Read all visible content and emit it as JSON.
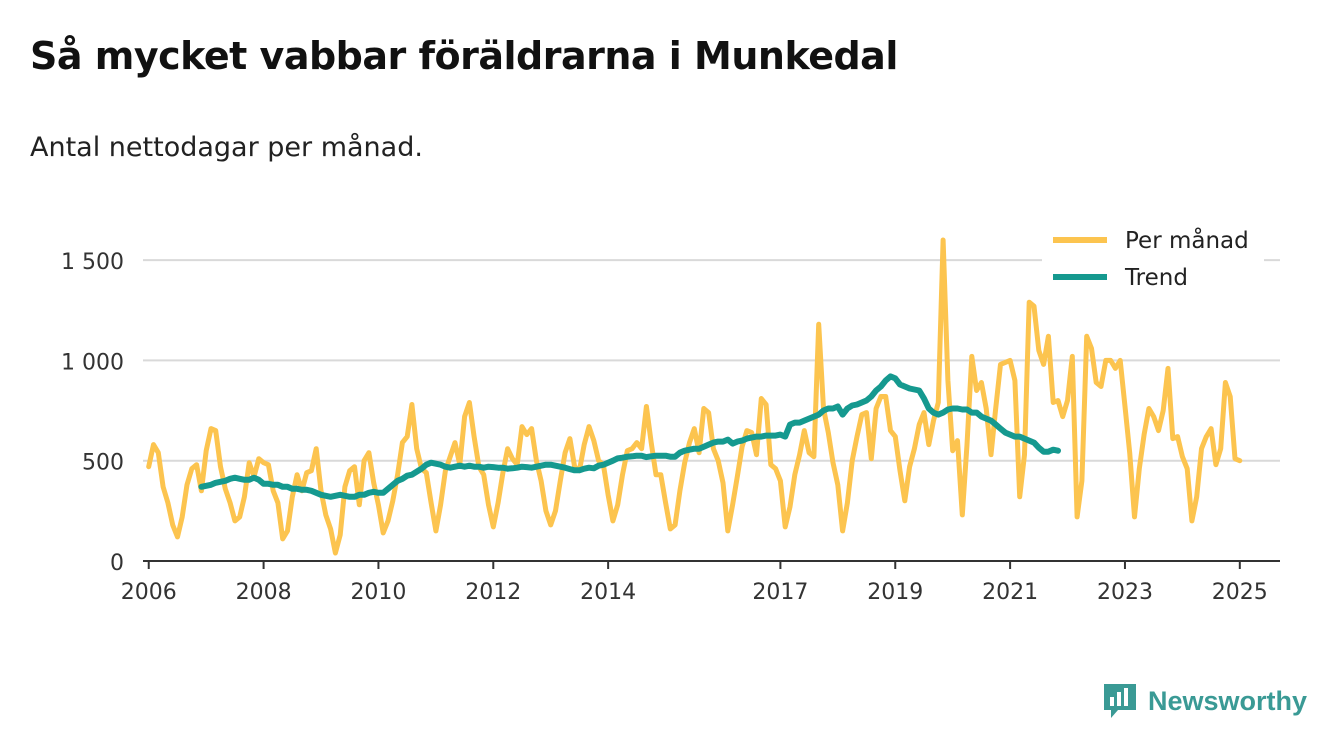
{
  "header": {
    "title": "Så mycket vabbar föräldrarna i Munkedal",
    "subtitle": "Antal nettodagar per månad."
  },
  "brand": {
    "name": "Newsworthy",
    "color": "#3a9a95"
  },
  "chart_data": {
    "type": "line",
    "title": "Så mycket vabbar föräldrarna i Munkedal",
    "subtitle": "Antal nettodagar per månad.",
    "xlabel": "",
    "ylabel": "",
    "xlim": [
      2005.9,
      2025.7
    ],
    "ylim": [
      0,
      1650
    ],
    "yticks": [
      0,
      500,
      1000,
      1500
    ],
    "ytick_labels": [
      "0",
      "500",
      "1 000",
      "1 500"
    ],
    "xticks": [
      2006,
      2008,
      2010,
      2012,
      2014,
      2017,
      2019,
      2021,
      2023,
      2025
    ],
    "xtick_labels": [
      "2006",
      "2008",
      "2010",
      "2012",
      "2014",
      "2017",
      "2019",
      "2021",
      "2023",
      "2025"
    ],
    "grid": true,
    "legend_position": "top-right",
    "series": [
      {
        "name": "Per månad",
        "color": "#fcc44f",
        "start": 2006.0,
        "step": 0.0833333,
        "values": [
          470,
          580,
          540,
          370,
          290,
          180,
          120,
          220,
          380,
          460,
          480,
          350,
          550,
          660,
          650,
          470,
          360,
          290,
          200,
          220,
          320,
          490,
          420,
          510,
          490,
          480,
          350,
          290,
          110,
          150,
          320,
          430,
          350,
          440,
          450,
          560,
          350,
          230,
          160,
          40,
          130,
          370,
          450,
          470,
          280,
          500,
          540,
          390,
          280,
          140,
          200,
          300,
          430,
          590,
          620,
          780,
          560,
          460,
          440,
          290,
          150,
          280,
          450,
          520,
          590,
          480,
          720,
          790,
          620,
          470,
          430,
          280,
          170,
          290,
          440,
          560,
          510,
          480,
          670,
          630,
          660,
          500,
          400,
          250,
          180,
          250,
          400,
          540,
          610,
          470,
          450,
          580,
          670,
          600,
          500,
          480,
          330,
          200,
          280,
          430,
          550,
          560,
          590,
          560,
          770,
          590,
          430,
          430,
          290,
          160,
          180,
          350,
          490,
          590,
          660,
          540,
          760,
          740,
          560,
          500,
          390,
          150,
          280,
          420,
          570,
          650,
          640,
          530,
          810,
          780,
          480,
          460,
          400,
          170,
          270,
          430,
          530,
          650,
          540,
          520,
          1180,
          760,
          640,
          490,
          380,
          150,
          290,
          500,
          620,
          730,
          740,
          510,
          760,
          820,
          820,
          650,
          620,
          450,
          300,
          470,
          560,
          680,
          740,
          580,
          700,
          790,
          1600,
          900,
          550,
          600,
          230,
          580,
          1020,
          850,
          890,
          760,
          530,
          760,
          980,
          990,
          1000,
          900,
          320,
          530,
          1290,
          1270,
          1050,
          980,
          1120,
          790,
          800,
          720,
          800,
          1020,
          220,
          400,
          1120,
          1060,
          890,
          870,
          1000,
          1000,
          960,
          1000,
          770,
          540,
          220,
          460,
          630,
          760,
          720,
          650,
          750,
          960,
          610,
          620,
          520,
          460,
          200,
          320,
          560,
          620,
          660,
          480,
          560,
          890,
          820,
          510,
          500
        ]
      },
      {
        "name": "Trend",
        "color": "#15998f",
        "start": 2006.9167,
        "step": 0.0833333,
        "values": [
          370,
          375,
          380,
          390,
          395,
          400,
          410,
          415,
          410,
          405,
          405,
          415,
          405,
          385,
          385,
          380,
          380,
          370,
          370,
          360,
          360,
          355,
          355,
          350,
          340,
          330,
          325,
          320,
          325,
          330,
          325,
          320,
          320,
          330,
          330,
          340,
          345,
          340,
          340,
          360,
          380,
          400,
          410,
          425,
          430,
          445,
          460,
          480,
          490,
          485,
          480,
          470,
          465,
          470,
          475,
          470,
          475,
          470,
          470,
          465,
          470,
          468,
          465,
          465,
          460,
          462,
          465,
          470,
          468,
          465,
          470,
          475,
          480,
          480,
          475,
          470,
          465,
          458,
          452,
          452,
          460,
          465,
          462,
          475,
          480,
          490,
          500,
          512,
          515,
          520,
          522,
          525,
          525,
          518,
          522,
          525,
          525,
          525,
          520,
          520,
          540,
          550,
          555,
          560,
          560,
          570,
          580,
          590,
          595,
          595,
          605,
          585,
          595,
          600,
          610,
          615,
          620,
          620,
          625,
          625,
          625,
          630,
          620,
          680,
          690,
          690,
          700,
          710,
          720,
          730,
          750,
          760,
          760,
          770,
          730,
          760,
          775,
          780,
          790,
          800,
          820,
          850,
          870,
          900,
          920,
          910,
          880,
          870,
          860,
          855,
          850,
          810,
          760,
          740,
          730,
          740,
          755,
          760,
          760,
          755,
          755,
          740,
          740,
          720,
          710,
          700,
          680,
          660,
          640,
          630,
          620,
          620,
          610,
          600,
          590,
          565,
          545,
          545,
          555,
          550
        ]
      }
    ]
  }
}
